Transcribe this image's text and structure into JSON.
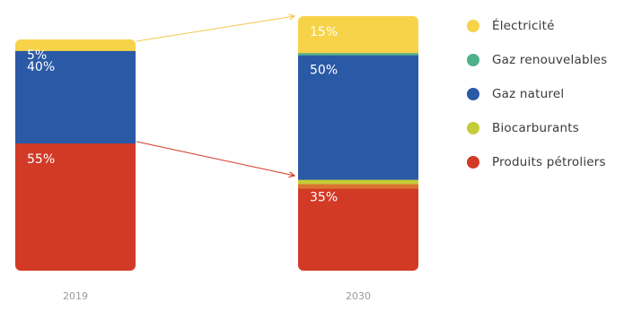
{
  "chart_data": {
    "type": "bar",
    "stacked": true,
    "categories": [
      "2019",
      "2030"
    ],
    "series": [
      {
        "name": "Électricité",
        "values": [
          5,
          15
        ],
        "color": "#f6d348"
      },
      {
        "name": "Gaz renouvelables",
        "values": [
          0,
          0
        ],
        "color": "#4fb08c"
      },
      {
        "name": "Gaz naturel",
        "values": [
          40,
          50
        ],
        "color": "#2a59a6"
      },
      {
        "name": "Biocarburants",
        "values": [
          0,
          0
        ],
        "color": "#c5cc3a"
      },
      {
        "name": "Produits pétroliers",
        "values": [
          55,
          35
        ],
        "color": "#d23a26"
      }
    ],
    "data_labels": [
      [
        "5%",
        "15%"
      ],
      [
        "",
        ""
      ],
      [
        "40%",
        "50%"
      ],
      [
        "",
        ""
      ],
      [
        "55%",
        "35%"
      ]
    ],
    "legend_position": "right",
    "grid": false,
    "ylim": [
      0,
      100
    ]
  }
}
